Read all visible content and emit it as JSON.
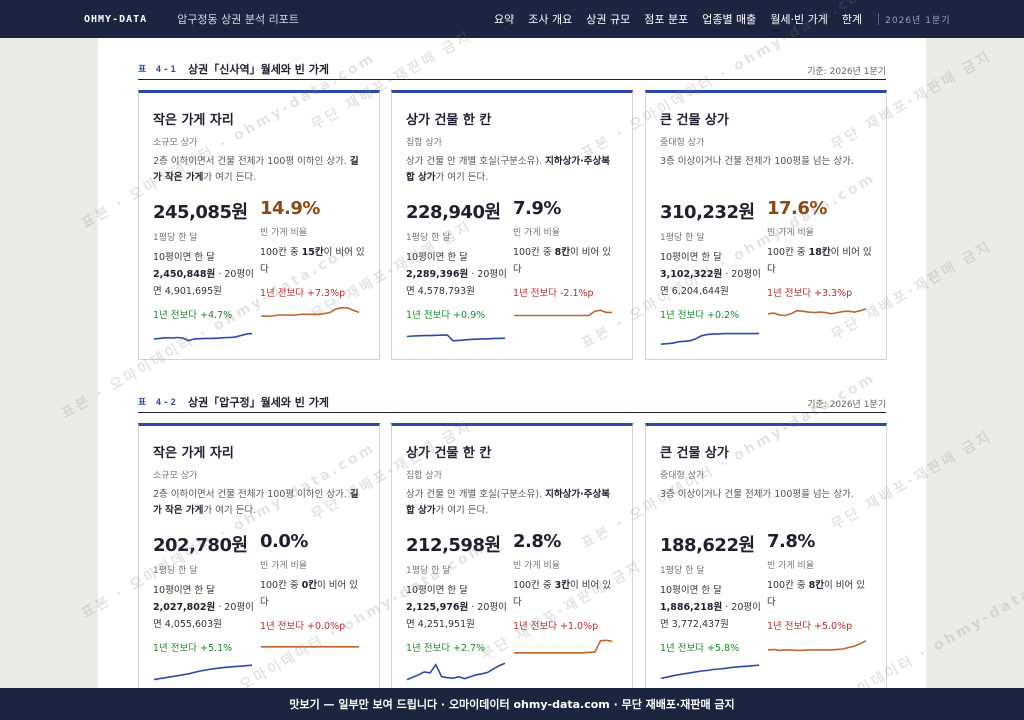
{
  "header": {
    "brand": "OHMY-DATA",
    "title": "압구정동 상권 분석 리포트",
    "nav": [
      "요약",
      "조사 개요",
      "상권 규모",
      "점포 분포",
      "업종별 매출",
      "월세·빈 가게",
      "한계"
    ],
    "period": "2026년 1분기"
  },
  "sections": [
    {
      "num": "표 4-1",
      "title": "상권「신사역」월세와 빈 가게",
      "basis": "기준: 2026년 1분기",
      "cards": [
        {
          "title": "작은 가게 자리",
          "sub": "소규모 상가",
          "desc_pre": "2층 이하이면서 건물 전체가 100평 이하인 상가. ",
          "desc_bold": "길가 작은 가게",
          "desc_post": "가 여기 든다.",
          "rent": "245,085원",
          "rent_label": "1평당 한 달",
          "detail_10": "10평이면 한 달",
          "detail_10_val": "2,450,848원",
          "detail_20_pre": " · 20평이면 ",
          "detail_20_val": "4,901,695원",
          "rent_change": "1년 전보다 +4.7%",
          "vacancy": "14.9%",
          "vacancy_label": "빈 가게 비율",
          "vac_pre": "100칸 중 ",
          "vac_bold": "15칸",
          "vac_post": "이 비어 있다",
          "vac_change": "1년 전보다 +7.3%p",
          "rent_trend": [
            0.42,
            0.44,
            0.47,
            0.46,
            0.48,
            0.46,
            0.35,
            0.42,
            0.43,
            0.44,
            0.44,
            0.45,
            0.47,
            0.48,
            0.49,
            0.56,
            0.62,
            0.64
          ],
          "vac_trend": [
            0.45,
            0.45,
            0.46,
            0.5,
            0.5,
            0.49,
            0.5,
            0.53,
            0.53,
            0.53,
            0.53,
            0.56,
            0.61,
            0.75,
            0.8,
            0.8,
            0.7,
            0.61
          ]
        },
        {
          "title": "상가 건물 한 칸",
          "sub": "집합 상가",
          "desc_pre": "상가 건물 안 개별 호실(구분소유). ",
          "desc_bold": "지하상가·주상복합 상가",
          "desc_post": "가 여기 든다.",
          "rent": "228,940원",
          "rent_label": "1평당 한 달",
          "detail_10": "10평이면 한 달",
          "detail_10_val": "2,289,396원",
          "detail_20_pre": " · 20평이면 ",
          "detail_20_val": "4,578,793원",
          "rent_change": "1년 전보다 +0.9%",
          "vacancy": "7.9%",
          "vacancy_label": "빈 가게 비율",
          "vac_pre": "100칸 중 ",
          "vac_bold": "8칸",
          "vac_post": "이 비어 있다",
          "vac_change": "1년 전보다 -2.1%p",
          "rent_trend": [
            0.52,
            0.54,
            0.55,
            0.56,
            0.56,
            0.57,
            0.58,
            0.58,
            0.34,
            0.36,
            0.38,
            0.4,
            0.41,
            0.42,
            0.42,
            0.44,
            0.44,
            0.45
          ],
          "vac_trend": [
            0.48,
            0.48,
            0.48,
            0.48,
            0.48,
            0.48,
            0.48,
            0.48,
            0.48,
            0.48,
            0.48,
            0.48,
            0.48,
            0.48,
            0.66,
            0.7,
            0.61,
            0.61
          ]
        },
        {
          "title": "큰 건물 상가",
          "sub": "중대형 상가",
          "desc_pre": "3층 이상이거나 건물 전체가 100평을 넘는 상가.",
          "desc_bold": "",
          "desc_post": "",
          "rent": "310,232원",
          "rent_label": "1평당 한 달",
          "detail_10": "10평이면 한 달",
          "detail_10_val": "3,102,322원",
          "detail_20_pre": " · 20평이면 ",
          "detail_20_val": "6,204,644원",
          "rent_change": "1년 전보다 +0.2%",
          "vacancy": "17.6%",
          "vacancy_label": "빈 가게 비율",
          "vac_pre": "100칸 중 ",
          "vac_bold": "18칸",
          "vac_post": "이 비어 있다",
          "vac_change": "1년 전보다 +3.3%p",
          "rent_trend": [
            0.2,
            0.22,
            0.24,
            0.3,
            0.32,
            0.34,
            0.42,
            0.55,
            0.6,
            0.62,
            0.63,
            0.64,
            0.64,
            0.64,
            0.64,
            0.64,
            0.64,
            0.65
          ],
          "vac_trend": [
            0.55,
            0.58,
            0.5,
            0.48,
            0.55,
            0.68,
            0.66,
            0.62,
            0.6,
            0.62,
            0.6,
            0.55,
            0.6,
            0.64,
            0.66,
            0.62,
            0.68,
            0.76
          ]
        }
      ]
    },
    {
      "num": "표 4-2",
      "title": "상권「압구정」월세와 빈 가게",
      "basis": "기준: 2026년 1분기",
      "cards": [
        {
          "title": "작은 가게 자리",
          "sub": "소규모 상가",
          "desc_pre": "2층 이하이면서 건물 전체가 100평 이하인 상가. ",
          "desc_bold": "길가 작은 가게",
          "desc_post": "가 여기 든다.",
          "rent": "202,780원",
          "rent_label": "1평당 한 달",
          "detail_10": "10평이면 한 달",
          "detail_10_val": "2,027,802원",
          "detail_20_pre": " · 20평이면 ",
          "detail_20_val": "4,055,603원",
          "rent_change": "1년 전보다 +5.1%",
          "vacancy": "0.0%",
          "vacancy_label": "빈 가게 비율",
          "vac_pre": "100칸 중 ",
          "vac_bold": "0칸",
          "vac_post": "이 비어 있다",
          "vac_change": "1년 전보다 +0.0%p",
          "rent_trend": [
            0.1,
            0.14,
            0.18,
            0.22,
            0.26,
            0.3,
            0.34,
            0.4,
            0.46,
            0.5,
            0.54,
            0.57,
            0.6,
            0.62,
            0.64,
            0.66,
            0.68,
            0.7
          ],
          "vac_trend": [
            0.55,
            0.55,
            0.55,
            0.55,
            0.55,
            0.55,
            0.55,
            0.55,
            0.55,
            0.55,
            0.55,
            0.55,
            0.55,
            0.55,
            0.55,
            0.55,
            0.55,
            0.55
          ]
        },
        {
          "title": "상가 건물 한 칸",
          "sub": "집합 상가",
          "desc_pre": "상가 건물 안 개별 호실(구분소유). ",
          "desc_bold": "지하상가·주상복합 상가",
          "desc_post": "가 여기 든다.",
          "rent": "212,598원",
          "rent_label": "1평당 한 달",
          "detail_10": "10평이면 한 달",
          "detail_10_val": "2,125,976원",
          "detail_20_pre": " · 20평이면 ",
          "detail_20_val": "4,251,951원",
          "rent_change": "1년 전보다 +2.7%",
          "vacancy": "2.8%",
          "vacancy_label": "빈 가게 비율",
          "vac_pre": "100칸 중 ",
          "vac_bold": "3칸",
          "vac_post": "이 비어 있다",
          "vac_change": "1년 전보다 +1.0%p",
          "rent_trend": [
            0.1,
            0.2,
            0.3,
            0.42,
            0.38,
            0.72,
            0.22,
            0.18,
            0.16,
            0.22,
            0.14,
            0.22,
            0.3,
            0.34,
            0.4,
            0.55,
            0.68,
            0.78
          ],
          "vac_trend": [
            0.3,
            0.3,
            0.3,
            0.3,
            0.3,
            0.3,
            0.3,
            0.3,
            0.3,
            0.3,
            0.3,
            0.3,
            0.3,
            0.32,
            0.32,
            0.8,
            0.82,
            0.78
          ]
        },
        {
          "title": "큰 건물 상가",
          "sub": "중대형 상가",
          "desc_pre": "3층 이상이거나 건물 전체가 100평을 넘는 상가.",
          "desc_bold": "",
          "desc_post": "",
          "rent": "188,622원",
          "rent_label": "1평당 한 달",
          "detail_10": "10평이면 한 달",
          "detail_10_val": "1,886,218원",
          "detail_20_pre": " · 20평이면 ",
          "detail_20_val": "3,772,437원",
          "rent_change": "1년 전보다 +5.8%",
          "vacancy": "7.8%",
          "vacancy_label": "빈 가게 비율",
          "vac_pre": "100칸 중 ",
          "vac_bold": "8칸",
          "vac_post": "이 비어 있다",
          "vac_change": "1년 전보다 +5.0%p",
          "rent_trend": [
            0.15,
            0.2,
            0.26,
            0.3,
            0.34,
            0.38,
            0.42,
            0.46,
            0.48,
            0.52,
            0.54,
            0.56,
            0.6,
            0.62,
            0.64,
            0.66,
            0.68,
            0.7
          ],
          "vac_trend": [
            0.42,
            0.44,
            0.4,
            0.42,
            0.42,
            0.4,
            0.4,
            0.42,
            0.42,
            0.42,
            0.42,
            0.42,
            0.44,
            0.46,
            0.52,
            0.58,
            0.68,
            0.8
          ]
        }
      ]
    }
  ],
  "watermark": {
    "text1": "표본 · 오마이데이터 · ohmy-data.com",
    "text2": "무단 재배포·재판매 금지"
  },
  "footer": {
    "text": "맛보기 — 일부만 보여 드립니다 · 오마이데이터 ohmy-data.com · 무단 재배포·재판매 금지"
  },
  "colors": {
    "navy": "#1b2540",
    "accent_blue": "#2b4aa8",
    "rent_line": "#2b4aa8",
    "vac_line": "#c0662a",
    "green": "#1a8a28",
    "red": "#c22a2a",
    "vacancy_high": "#8c4a12"
  }
}
